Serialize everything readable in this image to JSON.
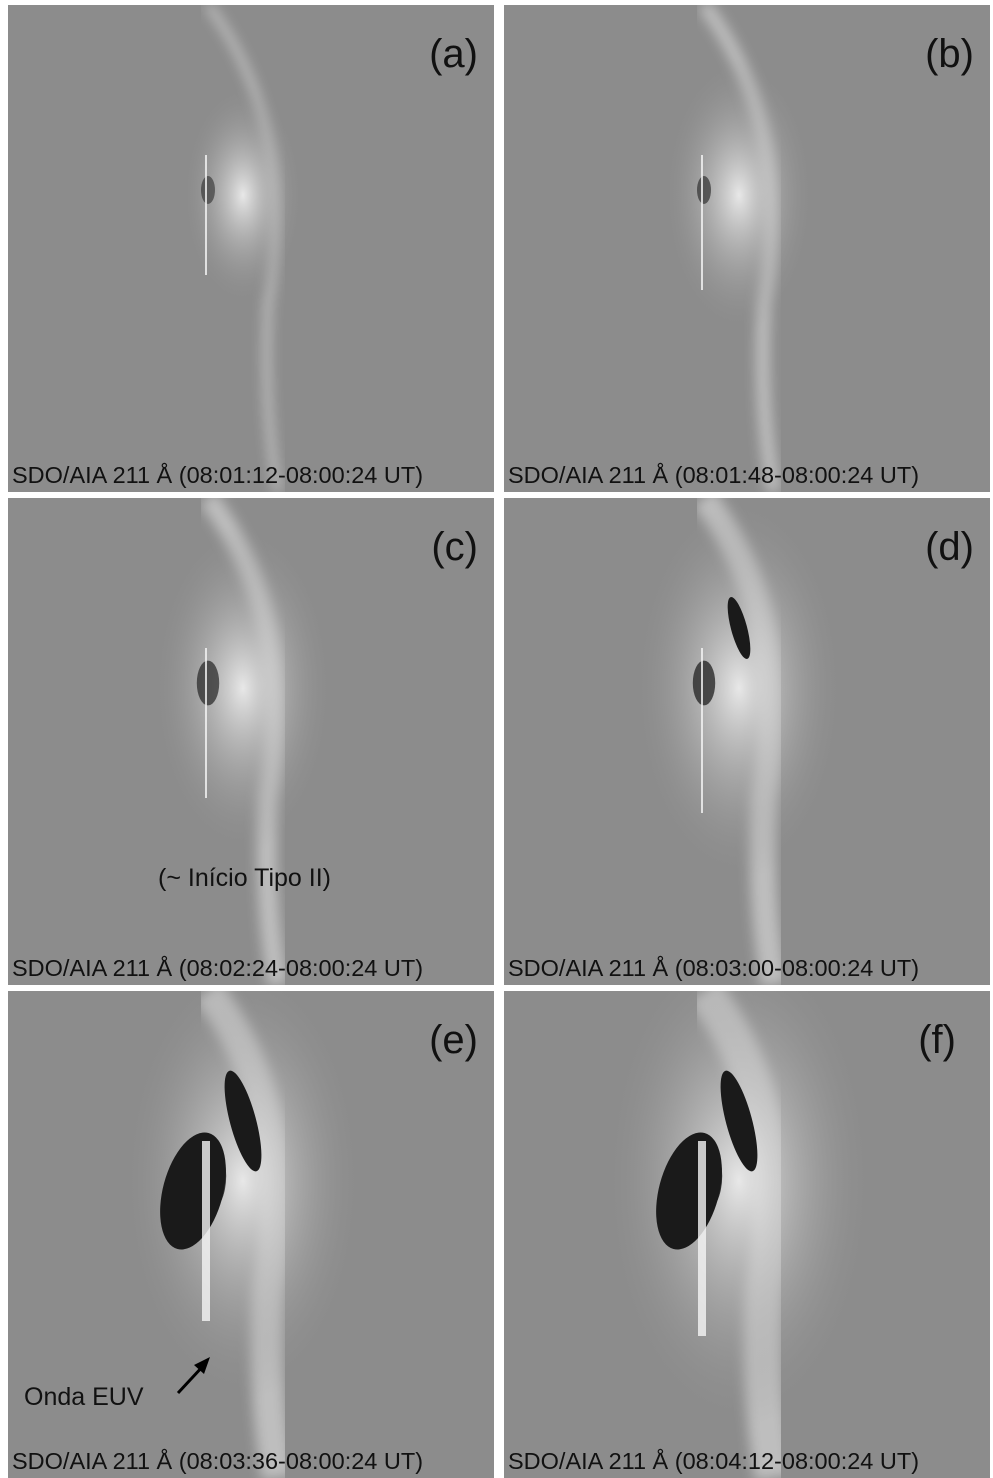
{
  "panels": [
    {
      "label": "(a)",
      "caption": "SDO/AIA 211 Å (08:01:12-08:00:24 UT)"
    },
    {
      "label": "(b)",
      "caption": "SDO/AIA 211 Å (08:01:48-08:00:24 UT)"
    },
    {
      "label": "(c)",
      "caption": "SDO/AIA 211 Å (08:02:24-08:00:24 UT)",
      "annotation": "(~ Início Tipo II)"
    },
    {
      "label": "(d)",
      "caption": "SDO/AIA 211 Å (08:03:00-08:00:24 UT)"
    },
    {
      "label": "(e)",
      "caption": "SDO/AIA 211 Å (08:03:36-08:00:24 UT)",
      "annotation": "Onda EUV"
    },
    {
      "label": "(f)",
      "caption": "SDO/AIA 211 Å (08:04:12-08:00:24 UT)"
    }
  ]
}
